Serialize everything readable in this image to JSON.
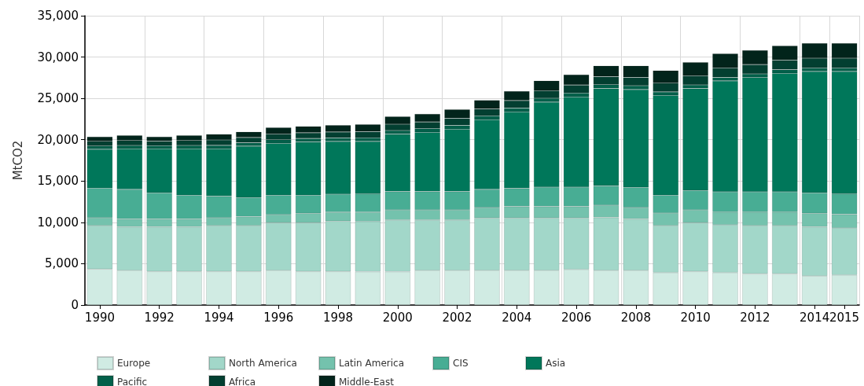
{
  "chart_data": {
    "type": "bar",
    "stacked": true,
    "ylabel": "MtCO2",
    "categories": [
      "1990",
      null,
      "1992",
      null,
      "1994",
      null,
      "1996",
      null,
      "1998",
      null,
      "2000",
      null,
      "2002",
      null,
      "2004",
      null,
      "2006",
      null,
      "2008",
      null,
      "2010",
      null,
      "2012",
      null,
      "2014",
      "2015"
    ],
    "series": [
      {
        "name": "Europe",
        "color": "#d0ebe3",
        "values": [
          4350,
          4190,
          4060,
          4060,
          4060,
          4060,
          4190,
          4060,
          4060,
          4030,
          4030,
          4190,
          4190,
          4190,
          4190,
          4190,
          4310,
          4190,
          4190,
          3930,
          4060,
          3930,
          3770,
          3770,
          3520,
          3640
        ]
      },
      {
        "name": "North America",
        "color": "#a2d7c9",
        "values": [
          5260,
          5260,
          5390,
          5390,
          5550,
          5550,
          5770,
          5900,
          6090,
          6080,
          6250,
          6090,
          6090,
          6340,
          6340,
          6340,
          6220,
          6400,
          6210,
          5680,
          5900,
          5770,
          5840,
          5840,
          5930,
          5680
        ]
      },
      {
        "name": "Latin America",
        "color": "#74c2ad",
        "values": [
          950,
          950,
          950,
          950,
          950,
          1080,
          980,
          1140,
          1080,
          1120,
          1230,
          1230,
          1230,
          1270,
          1390,
          1390,
          1390,
          1490,
          1400,
          1520,
          1550,
          1550,
          1640,
          1640,
          1650,
          1650
        ]
      },
      {
        "name": "CIS",
        "color": "#48ad94",
        "values": [
          3590,
          3590,
          3180,
          2890,
          2600,
          2310,
          2350,
          2190,
          2180,
          2210,
          2220,
          2220,
          2220,
          2190,
          2190,
          2350,
          2350,
          2320,
          2440,
          2160,
          2350,
          2450,
          2450,
          2450,
          2480,
          2470
        ]
      },
      {
        "name": "Asia",
        "color": "#00775a",
        "values": [
          4690,
          4910,
          5320,
          5610,
          5740,
          6220,
          6280,
          6430,
          6380,
          6350,
          6940,
          7170,
          7550,
          8430,
          9270,
          10280,
          10910,
          11790,
          11830,
          12080,
          12330,
          13420,
          13830,
          14340,
          14680,
          14820
        ]
      },
      {
        "name": "Pacific",
        "color": "#02604a",
        "values": [
          390,
          400,
          380,
          400,
          420,
          410,
          430,
          430,
          430,
          440,
          440,
          450,
          460,
          450,
          460,
          460,
          470,
          470,
          470,
          420,
          440,
          430,
          430,
          430,
          420,
          420
        ]
      },
      {
        "name": "Africa",
        "color": "#033f31",
        "values": [
          570,
          600,
          540,
          600,
          650,
          640,
          690,
          690,
          720,
          750,
          770,
          800,
          860,
          850,
          900,
          930,
          970,
          980,
          1010,
          1050,
          1100,
          1130,
          1130,
          1140,
          1180,
          1180
        ]
      },
      {
        "name": "Middle-East",
        "color": "#02241b",
        "values": [
          560,
          620,
          540,
          620,
          700,
          690,
          780,
          790,
          820,
          870,
          920,
          970,
          1060,
          1050,
          1140,
          1200,
          1260,
          1310,
          1400,
          1540,
          1640,
          1730,
          1740,
          1760,
          1820,
          1820
        ]
      }
    ],
    "ylim": [
      0,
      35000
    ],
    "yticks": [
      0,
      {
        "value": 5000,
        "label": "5,000"
      },
      {
        "value": 10000,
        "label": "10,000"
      },
      {
        "value": 15000,
        "label": "15,000"
      },
      {
        "value": 20000,
        "label": "20,000"
      },
      {
        "value": 25000,
        "label": "25,000"
      },
      {
        "value": 30000,
        "label": "30,000"
      },
      {
        "value": 35000,
        "label": "35,000"
      }
    ],
    "grid": true,
    "legend": "bottom"
  }
}
